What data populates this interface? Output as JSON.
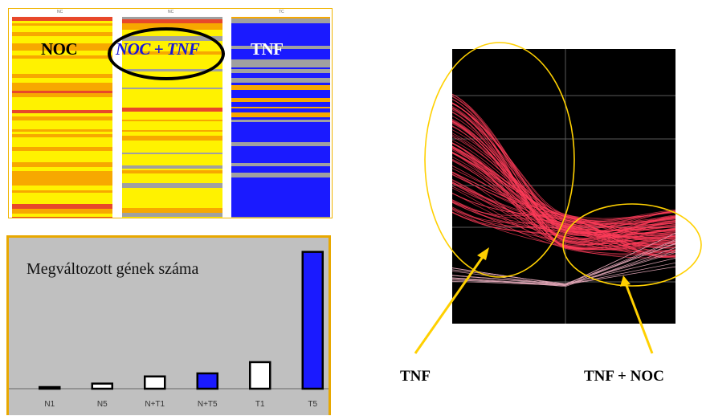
{
  "heatmap": {
    "column_headers": [
      "NC",
      "NC",
      "TC"
    ],
    "labels": {
      "noc": "NOC",
      "noc_tnf": "NOC + TNF",
      "tnf": "TNF"
    },
    "colors": {
      "yellow": "#fff200",
      "orange": "#f7a800",
      "red": "#e8482a",
      "blue": "#1a1aff",
      "gray": "#a0a0a0",
      "label_blue": "#1818d8"
    }
  },
  "chart_data": [
    {
      "type": "bar",
      "title": "Megváltozott gének száma",
      "categories": [
        "N1",
        "N5",
        "N+T1",
        "N+T5",
        "T1",
        "T5"
      ],
      "values": [
        1,
        5,
        12,
        15,
        26,
        134
      ],
      "colors": [
        "#ffffff",
        "#ffffff",
        "#ffffff",
        "#1a1aff",
        "#ffffff",
        "#1a1aff"
      ],
      "ylim": [
        0,
        140
      ],
      "xlabel": "",
      "ylabel": ""
    }
  ],
  "parallel_plot": {
    "annotations": {
      "left": "TNF",
      "right": "TNF + NOC"
    },
    "line_color": "#ff3c5a",
    "highlight_color": "#ffd000"
  }
}
